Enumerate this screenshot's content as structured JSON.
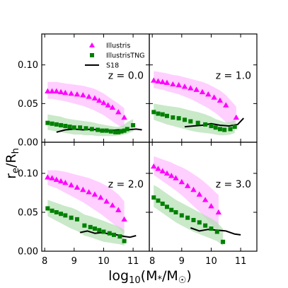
{
  "chart_data": {
    "type": "scatter",
    "layout": "2x2 panels, shared axes",
    "xlabel": "log10(M*/M☉)",
    "ylabel": "re/Rh",
    "xlim": [
      7.9,
      11.55
    ],
    "ylim": [
      0.0,
      0.14
    ],
    "xticks": [
      8,
      9,
      10,
      11
    ],
    "yticks": [
      0.0,
      0.05,
      0.1
    ],
    "xtick_labels": [
      "8",
      "9",
      "10",
      "11"
    ],
    "ytick_labels": [
      "0.00",
      "0.05",
      "0.10"
    ],
    "legend": {
      "placement": "top-left panel, upper-center",
      "entries": [
        {
          "name": "Illustris",
          "marker": "triangle",
          "color": "#ff00ff"
        },
        {
          "name": "IllustrisTNG",
          "marker": "square",
          "color": "#008000"
        },
        {
          "name": "S18",
          "marker": "line",
          "color": "#000000"
        }
      ]
    },
    "panels": [
      {
        "label": "z = 0.0",
        "series": [
          {
            "name": "Illustris",
            "x": [
              8.1,
              8.25,
              8.4,
              8.55,
              8.7,
              8.9,
              9.1,
              9.3,
              9.5,
              9.7,
              9.85,
              10.0,
              10.15,
              10.3,
              10.5,
              10.7
            ],
            "y": [
              0.066,
              0.066,
              0.066,
              0.065,
              0.064,
              0.063,
              0.062,
              0.061,
              0.059,
              0.057,
              0.054,
              0.051,
              0.048,
              0.045,
              0.039,
              0.032
            ],
            "band_low": [
              0.056,
              0.056,
              0.055,
              0.054,
              0.053,
              0.051,
              0.049,
              0.047,
              0.044,
              0.041,
              0.038,
              0.035,
              0.031,
              0.027,
              0.022,
              0.018
            ],
            "band_high": [
              0.078,
              0.078,
              0.078,
              0.077,
              0.076,
              0.075,
              0.074,
              0.073,
              0.071,
              0.069,
              0.066,
              0.063,
              0.059,
              0.055,
              0.05,
              0.044
            ]
          },
          {
            "name": "IllustrisTNG",
            "x": [
              8.1,
              8.25,
              8.4,
              8.55,
              8.7,
              8.85,
              9.0,
              9.2,
              9.4,
              9.6,
              9.8,
              9.95,
              10.1,
              10.25,
              10.4,
              10.5,
              10.6,
              10.7,
              10.8,
              11.0
            ],
            "y": [
              0.025,
              0.024,
              0.023,
              0.022,
              0.021,
              0.02,
              0.019,
              0.019,
              0.018,
              0.017,
              0.016,
              0.015,
              0.015,
              0.014,
              0.013,
              0.013,
              0.014,
              0.015,
              0.017,
              0.022
            ],
            "band_low": [
              0.016,
              0.015,
              0.014,
              0.013,
              0.012,
              0.011,
              0.01,
              0.01,
              0.009,
              0.009,
              0.008,
              0.008,
              0.008,
              0.008,
              0.008,
              0.009,
              0.009,
              0.01,
              0.011,
              0.014
            ],
            "band_high": [
              0.036,
              0.035,
              0.034,
              0.033,
              0.031,
              0.03,
              0.029,
              0.028,
              0.027,
              0.026,
              0.024,
              0.023,
              0.022,
              0.021,
              0.02,
              0.02,
              0.021,
              0.023,
              0.026,
              0.03
            ]
          },
          {
            "name": "S18",
            "x": [
              8.4,
              8.7,
              9.0,
              9.3,
              9.6,
              9.9,
              10.2,
              10.5,
              10.8,
              11.1,
              11.3
            ],
            "y": [
              0.013,
              0.016,
              0.017,
              0.016,
              0.017,
              0.015,
              0.015,
              0.016,
              0.016,
              0.017,
              0.016
            ]
          }
        ]
      },
      {
        "label": "z = 1.0",
        "series": [
          {
            "name": "Illustris",
            "x": [
              8.05,
              8.2,
              8.35,
              8.5,
              8.7,
              8.9,
              9.1,
              9.3,
              9.5,
              9.7,
              9.9,
              10.1,
              10.3,
              10.5,
              10.85
            ],
            "y": [
              0.08,
              0.079,
              0.078,
              0.077,
              0.075,
              0.074,
              0.072,
              0.07,
              0.068,
              0.065,
              0.062,
              0.058,
              0.054,
              0.048,
              0.032
            ],
            "band_low": [
              0.07,
              0.069,
              0.068,
              0.066,
              0.064,
              0.062,
              0.059,
              0.056,
              0.052,
              0.048,
              0.044,
              0.039,
              0.033,
              0.026,
              0.02
            ],
            "band_high": [
              0.092,
              0.091,
              0.09,
              0.089,
              0.087,
              0.086,
              0.084,
              0.082,
              0.08,
              0.078,
              0.075,
              0.071,
              0.067,
              0.061,
              0.046
            ]
          },
          {
            "name": "IllustrisTNG",
            "x": [
              8.05,
              8.2,
              8.35,
              8.5,
              8.7,
              8.9,
              9.1,
              9.3,
              9.55,
              9.8,
              10.0,
              10.15,
              10.3,
              10.45,
              10.65,
              10.8
            ],
            "y": [
              0.039,
              0.037,
              0.036,
              0.034,
              0.032,
              0.031,
              0.029,
              0.027,
              0.025,
              0.023,
              0.021,
              0.019,
              0.017,
              0.016,
              0.017,
              0.02
            ],
            "band_low": [
              0.029,
              0.027,
              0.025,
              0.023,
              0.021,
              0.019,
              0.017,
              0.015,
              0.013,
              0.012,
              0.011,
              0.01,
              0.009,
              0.009,
              0.01,
              0.012
            ],
            "band_high": [
              0.05,
              0.049,
              0.048,
              0.047,
              0.046,
              0.045,
              0.043,
              0.041,
              0.039,
              0.036,
              0.033,
              0.03,
              0.028,
              0.026,
              0.026,
              0.029
            ]
          },
          {
            "name": "S18",
            "x": [
              9.1,
              9.4,
              9.7,
              10.0,
              10.3,
              10.6,
              10.9,
              11.1
            ],
            "y": [
              0.02,
              0.021,
              0.022,
              0.024,
              0.022,
              0.021,
              0.023,
              0.031
            ]
          }
        ]
      },
      {
        "label": "z = 2.0",
        "series": [
          {
            "name": "Illustris",
            "x": [
              8.1,
              8.25,
              8.4,
              8.55,
              8.7,
              8.9,
              9.1,
              9.3,
              9.5,
              9.7,
              9.9,
              10.1,
              10.3,
              10.5,
              10.7
            ],
            "y": [
              0.095,
              0.094,
              0.092,
              0.09,
              0.088,
              0.085,
              0.082,
              0.079,
              0.076,
              0.073,
              0.069,
              0.064,
              0.059,
              0.053,
              0.041
            ],
            "band_low": [
              0.085,
              0.083,
              0.081,
              0.078,
              0.075,
              0.071,
              0.067,
              0.063,
              0.058,
              0.053,
              0.048,
              0.042,
              0.036,
              0.03,
              0.023
            ],
            "band_high": [
              0.104,
              0.104,
              0.104,
              0.103,
              0.102,
              0.1,
              0.098,
              0.096,
              0.094,
              0.091,
              0.088,
              0.084,
              0.079,
              0.073,
              0.064
            ]
          },
          {
            "name": "IllustrisTNG",
            "x": [
              8.1,
              8.25,
              8.4,
              8.55,
              8.7,
              8.9,
              9.1,
              9.35,
              9.55,
              9.7,
              9.85,
              10.0,
              10.2,
              10.35,
              10.55,
              10.7
            ],
            "y": [
              0.055,
              0.052,
              0.05,
              0.048,
              0.046,
              0.043,
              0.041,
              0.033,
              0.031,
              0.029,
              0.027,
              0.025,
              0.023,
              0.021,
              0.019,
              0.013
            ],
            "band_low": [
              0.045,
              0.042,
              0.039,
              0.036,
              0.033,
              0.029,
              0.026,
              0.02,
              0.018,
              0.016,
              0.014,
              0.012,
              0.011,
              0.01,
              0.009,
              0.007
            ],
            "band_high": [
              0.066,
              0.064,
              0.062,
              0.06,
              0.058,
              0.056,
              0.053,
              0.047,
              0.045,
              0.043,
              0.041,
              0.039,
              0.036,
              0.034,
              0.031,
              0.027
            ]
          },
          {
            "name": "S18",
            "x": [
              9.2,
              9.45,
              9.7,
              9.95,
              10.2,
              10.45,
              10.7,
              10.9,
              11.1
            ],
            "y": [
              0.024,
              0.026,
              0.023,
              0.024,
              0.022,
              0.021,
              0.019,
              0.018,
              0.02
            ]
          }
        ]
      },
      {
        "label": "z = 3.0",
        "series": [
          {
            "name": "Illustris",
            "x": [
              8.05,
              8.2,
              8.35,
              8.5,
              8.65,
              8.8,
              9.0,
              9.2,
              9.4,
              9.6,
              9.8,
              10.0,
              10.25
            ],
            "y": [
              0.109,
              0.106,
              0.103,
              0.1,
              0.097,
              0.094,
              0.089,
              0.084,
              0.079,
              0.073,
              0.066,
              0.058,
              0.05
            ],
            "band_low": [
              0.098,
              0.094,
              0.09,
              0.086,
              0.082,
              0.078,
              0.072,
              0.065,
              0.058,
              0.051,
              0.043,
              0.035,
              0.026
            ],
            "band_high": [
              0.122,
              0.12,
              0.118,
              0.116,
              0.114,
              0.111,
              0.108,
              0.104,
              0.099,
              0.094,
              0.088,
              0.081,
              0.072
            ]
          },
          {
            "name": "IllustrisTNG",
            "x": [
              8.05,
              8.2,
              8.35,
              8.5,
              8.65,
              8.8,
              9.0,
              9.2,
              9.4,
              9.6,
              9.8,
              10.0,
              10.2,
              10.4
            ],
            "y": [
              0.069,
              0.065,
              0.061,
              0.057,
              0.053,
              0.05,
              0.046,
              0.043,
              0.04,
              0.037,
              0.033,
              0.029,
              0.025,
              0.012
            ],
            "band_low": [
              0.057,
              0.053,
              0.049,
              0.045,
              0.041,
              0.037,
              0.033,
              0.029,
              0.025,
              0.022,
              0.019,
              0.016,
              0.013,
              0.007
            ],
            "band_high": [
              0.085,
              0.082,
              0.078,
              0.074,
              0.07,
              0.066,
              0.062,
              0.058,
              0.054,
              0.05,
              0.046,
              0.042,
              0.037,
              0.029
            ]
          },
          {
            "name": "S18",
            "x": [
              9.3,
              9.6,
              9.9,
              10.2,
              10.5,
              10.8,
              11.0
            ],
            "y": [
              0.03,
              0.026,
              0.028,
              0.027,
              0.026,
              0.022,
              0.021
            ]
          }
        ]
      }
    ]
  },
  "colors": {
    "illustris": "#ff00ff",
    "illustris_band": "#ffbfff",
    "tng": "#008000",
    "tng_band": "#b2dfb2",
    "s18": "#000000"
  }
}
